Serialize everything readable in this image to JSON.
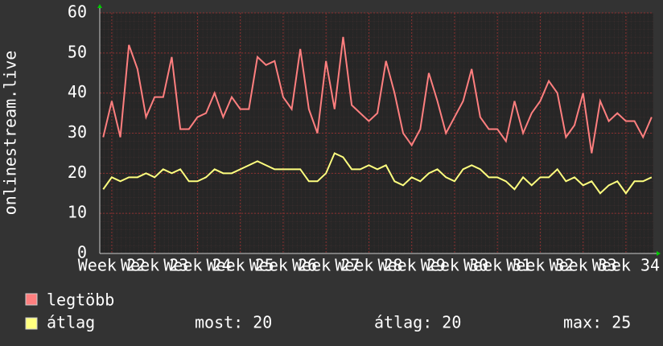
{
  "chart_data": {
    "type": "line",
    "y_label": "onlinestream.live",
    "x": [
      21.8,
      22.0,
      22.2,
      22.4,
      22.6,
      22.8,
      23.0,
      23.2,
      23.4,
      23.6,
      23.8,
      24.0,
      24.2,
      24.4,
      24.6,
      24.8,
      25.0,
      25.2,
      25.4,
      25.6,
      25.8,
      26.0,
      26.2,
      26.4,
      26.6,
      26.8,
      27.0,
      27.2,
      27.4,
      27.6,
      27.8,
      28.0,
      28.2,
      28.4,
      28.6,
      28.8,
      29.0,
      29.2,
      29.4,
      29.6,
      29.8,
      30.0,
      30.2,
      30.4,
      30.6,
      30.8,
      31.0,
      31.2,
      31.4,
      31.6,
      31.8,
      32.0,
      32.2,
      32.4,
      32.6,
      32.8,
      33.0,
      33.2,
      33.4,
      33.6,
      33.8,
      34.0,
      34.2,
      34.4,
      34.6
    ],
    "series": [
      {
        "name": "legtöbb",
        "color": "#ff7f7f",
        "values": [
          29,
          38,
          29,
          52,
          46,
          34,
          39,
          39,
          49,
          31,
          31,
          34,
          35,
          40,
          34,
          39,
          36,
          36,
          49,
          47,
          48,
          39,
          36,
          51,
          36,
          30,
          48,
          36,
          54,
          37,
          35,
          33,
          35,
          48,
          40,
          30,
          27,
          31,
          45,
          38,
          30,
          34,
          38,
          46,
          34,
          31,
          31,
          28,
          38,
          30,
          35,
          38,
          43,
          40,
          29,
          32,
          40,
          25,
          38,
          33,
          35,
          33,
          33,
          29,
          34
        ]
      },
      {
        "name": "átlag",
        "color": "#ffff7f",
        "values": [
          16,
          19,
          18,
          19,
          19,
          20,
          19,
          21,
          20,
          21,
          18,
          18,
          19,
          21,
          20,
          20,
          21,
          22,
          23,
          22,
          21,
          21,
          21,
          21,
          18,
          18,
          20,
          25,
          24,
          21,
          21,
          22,
          21,
          22,
          18,
          17,
          19,
          18,
          20,
          21,
          19,
          18,
          21,
          22,
          21,
          19,
          19,
          18,
          16,
          19,
          17,
          19,
          19,
          21,
          18,
          19,
          17,
          18,
          15,
          17,
          18,
          15,
          18,
          18,
          19
        ]
      }
    ],
    "xlim": [
      21.72,
      34.64
    ],
    "xticks": [
      {
        "value": 22,
        "label": "Week 22"
      },
      {
        "value": 23,
        "label": "Week 23"
      },
      {
        "value": 24,
        "label": "Week 24"
      },
      {
        "value": 25,
        "label": "Week 25"
      },
      {
        "value": 26,
        "label": "Week 26"
      },
      {
        "value": 27,
        "label": "Week 27"
      },
      {
        "value": 28,
        "label": "Week 28"
      },
      {
        "value": 29,
        "label": "Week 29"
      },
      {
        "value": 30,
        "label": "Week 30"
      },
      {
        "value": 31,
        "label": "Week 31"
      },
      {
        "value": 32,
        "label": "Week 32"
      },
      {
        "value": 33,
        "label": "Week 33"
      },
      {
        "value": 34,
        "label": "Week 34"
      }
    ],
    "ylim": [
      0,
      60
    ],
    "yticks": [
      0,
      10,
      20,
      30,
      40,
      50,
      60
    ],
    "grid": true,
    "stats": [
      "most: 20",
      "átlag: 20",
      "max: 25"
    ]
  }
}
